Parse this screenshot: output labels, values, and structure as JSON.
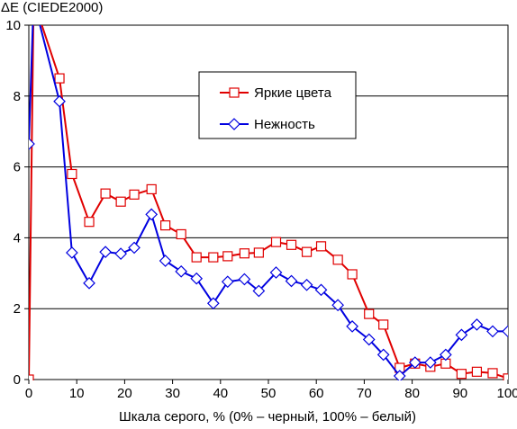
{
  "chart_data": {
    "type": "line",
    "title": "",
    "ylabel": "ΔE (CIEDE2000)",
    "xlabel": "Шкала серого, % (0% – черный, 100% – белый)",
    "xlim": [
      0,
      100
    ],
    "ylim": [
      0,
      10
    ],
    "x_ticks": [
      0,
      10,
      20,
      30,
      40,
      50,
      60,
      70,
      80,
      90,
      100
    ],
    "y_ticks": [
      0,
      2,
      4,
      6,
      8,
      10
    ],
    "grid": "horizontal",
    "legend_position": "upper-center",
    "series": [
      {
        "name": "Яркие цвета",
        "color": "#e00000",
        "marker": "square",
        "x": [
          0,
          1,
          6.4,
          9,
          12.6,
          16,
          19.2,
          22,
          25.6,
          28.5,
          31.8,
          35,
          38.5,
          41.5,
          45,
          48,
          51.6,
          54.8,
          58,
          61,
          64.5,
          67.5,
          71,
          74,
          77.4,
          80.6,
          83.8,
          87,
          90.3,
          93.5,
          96.8,
          100
        ],
        "y": [
          0,
          10,
          8.5,
          5.8,
          4.45,
          5.25,
          5.02,
          5.22,
          5.37,
          4.35,
          4.1,
          3.45,
          3.45,
          3.48,
          3.56,
          3.58,
          3.88,
          3.8,
          3.6,
          3.76,
          3.38,
          2.97,
          1.85,
          1.55,
          0.33,
          0.45,
          0.36,
          0.45,
          0.16,
          0.22,
          0.18,
          0.03
        ]
      },
      {
        "name": "Нежность",
        "color": "#0000e0",
        "marker": "diamond",
        "x": [
          0,
          1,
          6.4,
          9,
          12.6,
          16,
          19.2,
          22,
          25.6,
          28.5,
          31.8,
          35,
          38.5,
          41.5,
          45,
          48,
          51.6,
          54.8,
          58,
          61,
          64.5,
          67.5,
          71,
          74,
          77.4,
          80.6,
          83.8,
          87,
          90.3,
          93.5,
          96.8,
          100
        ],
        "y": [
          6.65,
          10,
          7.85,
          3.58,
          2.72,
          3.6,
          3.55,
          3.72,
          4.66,
          3.35,
          3.05,
          2.85,
          2.15,
          2.76,
          2.83,
          2.5,
          3.02,
          2.78,
          2.67,
          2.53,
          2.1,
          1.5,
          1.13,
          0.7,
          0.1,
          0.48,
          0.48,
          0.7,
          1.26,
          1.55,
          1.36,
          1.36
        ]
      }
    ]
  }
}
